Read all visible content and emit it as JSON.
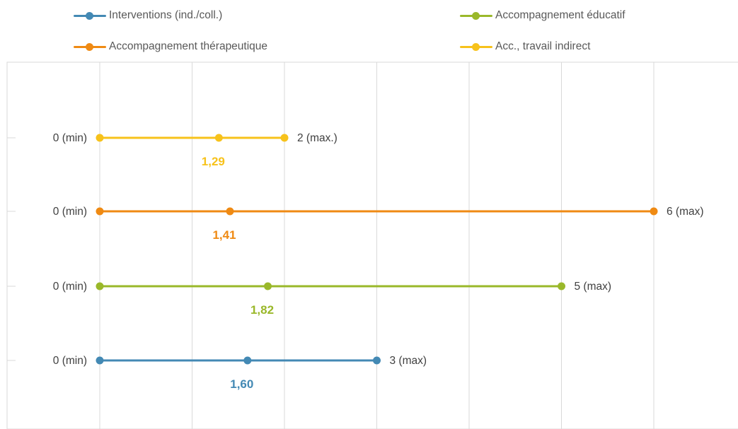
{
  "chart_data": {
    "type": "line",
    "legend_position": "top",
    "grid": true,
    "xlim": [
      0,
      6
    ],
    "series": [
      {
        "name": "Interventions (ind./coll.)",
        "color": "#4389b4",
        "min": 0,
        "mean": 1.6,
        "max": 3,
        "min_label": "0 (min)",
        "mean_label": "1,60",
        "max_label": "3 (max)"
      },
      {
        "name": "Accompagnement éducatif",
        "color": "#9ab82a",
        "min": 0,
        "mean": 1.82,
        "max": 5,
        "min_label": "0 (min)",
        "mean_label": "1,82",
        "max_label": "5 (max)"
      },
      {
        "name": "Accompagnement thérapeutique",
        "color": "#ef8a13",
        "min": 0,
        "mean": 1.41,
        "max": 6,
        "min_label": "0 (min)",
        "mean_label": "1,41",
        "max_label": "6 (max)"
      },
      {
        "name": "Acc., travail indirect",
        "color": "#f7c21b",
        "min": 0,
        "mean": 1.29,
        "max": 2,
        "min_label": "0 (min)",
        "mean_label": "1,29",
        "max_label": "2 (max.)"
      }
    ]
  }
}
